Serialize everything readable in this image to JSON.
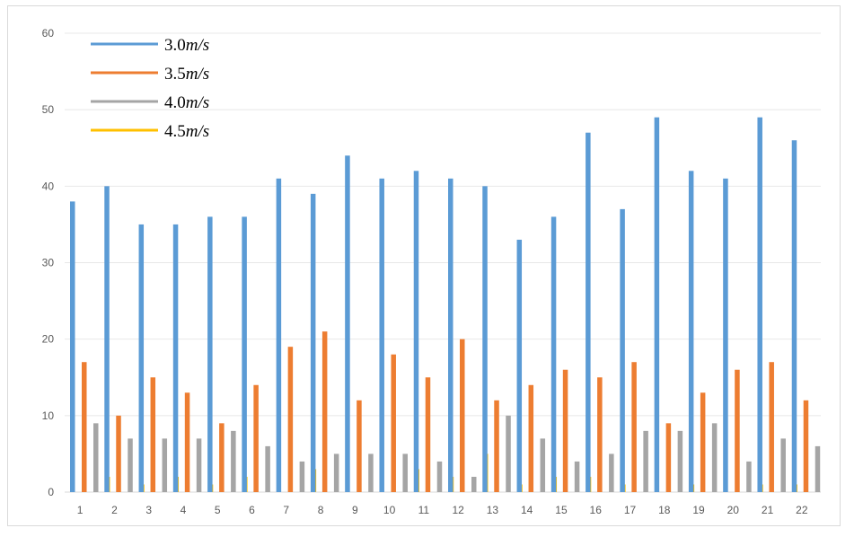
{
  "chart_data": {
    "type": "bar",
    "categories": [
      "1",
      "2",
      "3",
      "4",
      "5",
      "6",
      "7",
      "8",
      "9",
      "10",
      "11",
      "12",
      "13",
      "14",
      "15",
      "16",
      "17",
      "18",
      "19",
      "20",
      "21",
      "22"
    ],
    "series": [
      {
        "name": "3.0m/s",
        "legend_num": "3.0",
        "legend_unit": "m/s",
        "color": "#5b9bd5",
        "values": [
          38,
          40,
          35,
          35,
          36,
          36,
          41,
          39,
          44,
          41,
          42,
          41,
          40,
          33,
          36,
          47,
          37,
          49,
          42,
          41,
          49,
          46
        ]
      },
      {
        "name": "3.5m/s",
        "legend_num": "3.5",
        "legend_unit": "m/s",
        "color": "#ed7d31",
        "values": [
          17,
          10,
          15,
          13,
          9,
          14,
          19,
          21,
          12,
          18,
          15,
          20,
          12,
          14,
          16,
          15,
          17,
          9,
          13,
          16,
          17,
          12
        ]
      },
      {
        "name": "4.0m/s",
        "legend_num": "4.0",
        "legend_unit": "m/s",
        "color": "#a5a5a5",
        "values": [
          9,
          7,
          7,
          7,
          8,
          6,
          4,
          5,
          5,
          5,
          4,
          2,
          10,
          7,
          4,
          5,
          8,
          8,
          9,
          4,
          7,
          6
        ]
      },
      {
        "name": "4.5m/s",
        "legend_num": "4.5",
        "legend_unit": "m/s",
        "color": "#ffc000",
        "values": [
          2,
          1,
          2,
          1,
          2,
          0,
          3,
          0,
          0,
          3,
          2,
          5,
          1,
          2,
          2,
          1,
          0,
          1,
          0,
          1,
          1,
          0
        ]
      }
    ],
    "yticks": [
      "0",
      "10",
      "20",
      "30",
      "40",
      "50",
      "60"
    ],
    "ylim": [
      0,
      60
    ],
    "grid": true,
    "legend_position": "top-left",
    "title": "",
    "xlabel": "",
    "ylabel": ""
  }
}
